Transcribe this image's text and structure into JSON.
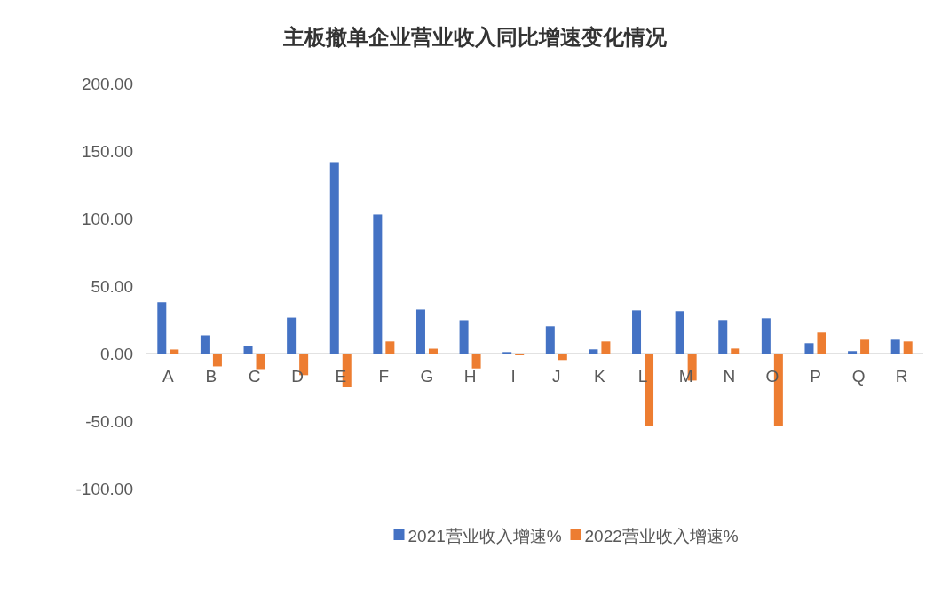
{
  "chart_data": {
    "type": "bar",
    "title": "主板撤单企业营业收入同比增速变化情况",
    "categories": [
      "A",
      "B",
      "C",
      "D",
      "E",
      "F",
      "G",
      "H",
      "I",
      "J",
      "K",
      "L",
      "M",
      "N",
      "O",
      "P",
      "Q",
      "R"
    ],
    "series": [
      {
        "name": "2021营业收入增速%",
        "color": "#4472c4",
        "values": [
          38,
          13.5,
          5.6,
          26.6,
          141.8,
          103,
          32.6,
          24.7,
          1.1,
          20.2,
          3.1,
          32,
          31.4,
          24.8,
          26.1,
          7.7,
          1.8,
          10.3
        ]
      },
      {
        "name": "2022营业收入增速%",
        "color": "#ed7d31",
        "values": [
          3,
          -9.5,
          -11.5,
          -16,
          -25,
          9,
          3.6,
          -11,
          -1.3,
          -4.8,
          9,
          -53.5,
          -20,
          3.7,
          -53.5,
          15.6,
          10.3,
          9
        ]
      }
    ],
    "ylim": [
      -100,
      200
    ],
    "yticks": [
      {
        "value": -100,
        "label": "-100.00"
      },
      {
        "value": -50,
        "label": "-50.00"
      },
      {
        "value": 0,
        "label": "0.00"
      },
      {
        "value": 50,
        "label": "50.00"
      },
      {
        "value": 100,
        "label": "100.00"
      },
      {
        "value": 150,
        "label": "150.00"
      },
      {
        "value": 200,
        "label": "200.00"
      }
    ],
    "legend": "bottom",
    "grid": false
  }
}
